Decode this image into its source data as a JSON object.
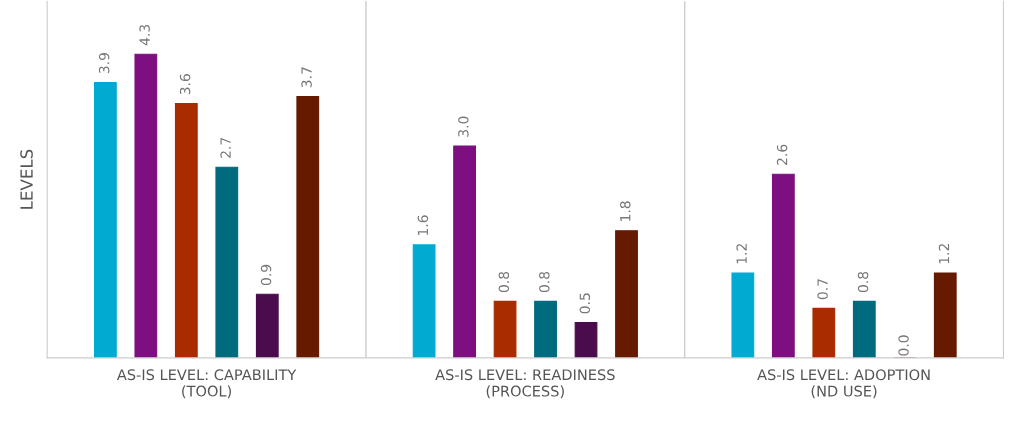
{
  "chart_data": {
    "type": "bar",
    "ylabel": "LEVELS",
    "categories": [
      "AS-IS LEVEL: CAPABILITY\n(TOOL)",
      "AS-IS LEVEL: READINESS\n(PROCESS)",
      "AS-IS LEVEL: ADOPTION\n(ND USE)"
    ],
    "series": [
      {
        "color": "#00aad0",
        "values": [
          3.9,
          1.6,
          1.2
        ],
        "value_labels": [
          "3.9",
          "1.6",
          "1.2"
        ]
      },
      {
        "color": "#7e0f80",
        "values": [
          4.3,
          3.0,
          2.6
        ],
        "value_labels": [
          "4.3",
          "3.0",
          "2.6"
        ]
      },
      {
        "color": "#a82c00",
        "values": [
          3.6,
          0.8,
          0.7
        ],
        "value_labels": [
          "3.6",
          "0.8",
          "0.7"
        ]
      },
      {
        "color": "#006a7e",
        "values": [
          2.7,
          0.8,
          0.8
        ],
        "value_labels": [
          "2.7",
          "0.8",
          "0.8"
        ]
      },
      {
        "color": "#4b0c4e",
        "values": [
          0.9,
          0.5,
          0.0
        ],
        "value_labels": [
          "0.9",
          "0.5",
          "0.0"
        ]
      },
      {
        "color": "#661a00",
        "values": [
          3.7,
          1.8,
          1.2
        ],
        "value_labels": [
          "3.7",
          "1.8",
          "1.2"
        ]
      }
    ],
    "ylim": [
      0,
      5.05
    ],
    "grid": "x",
    "legend": false
  }
}
